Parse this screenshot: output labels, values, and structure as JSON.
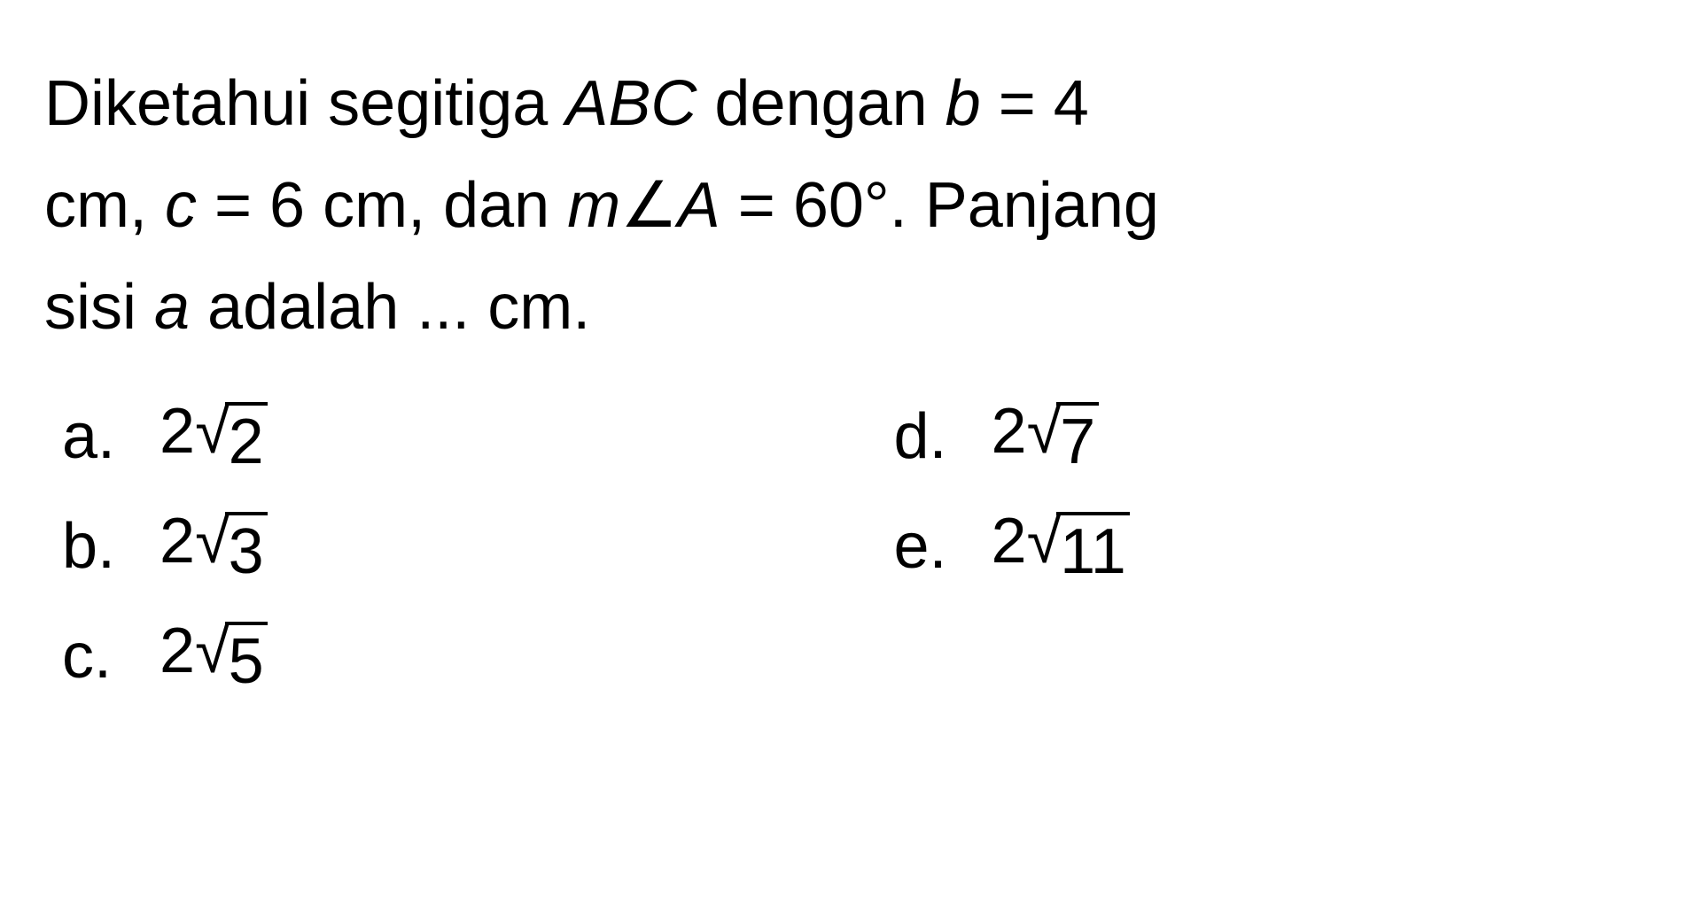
{
  "question": {
    "line1_prefix": "Diketahui segitiga ",
    "triangle": "ABC",
    "line1_mid": " dengan ",
    "var_b": "b",
    "eq_b": " = 4",
    "line2_prefix": "cm, ",
    "var_c": "c",
    "eq_c": " = 6 cm, dan ",
    "var_m": "m",
    "angle_sym": "∠",
    "var_A": "A",
    "eq_A": " = 60°. Panjang",
    "line3_prefix": "sisi ",
    "var_a": "a",
    "line3_suffix": " adalah ... cm."
  },
  "options": {
    "a": {
      "letter": "a.",
      "coef": "2",
      "root": "√",
      "arg": "2"
    },
    "b": {
      "letter": "b.",
      "coef": "2",
      "root": "√",
      "arg": "3"
    },
    "c": {
      "letter": "c.",
      "coef": "2",
      "root": "√",
      "arg": "5"
    },
    "d": {
      "letter": "d.",
      "coef": "2",
      "root": "√",
      "arg": "7"
    },
    "e": {
      "letter": "e.",
      "coef": "2",
      "root": "√",
      "arg": "11"
    }
  },
  "styling": {
    "font_size": 72,
    "text_color": "#000000",
    "background_color": "#ffffff",
    "line_height": 1.6,
    "sqrt_bar_thickness": 4
  }
}
